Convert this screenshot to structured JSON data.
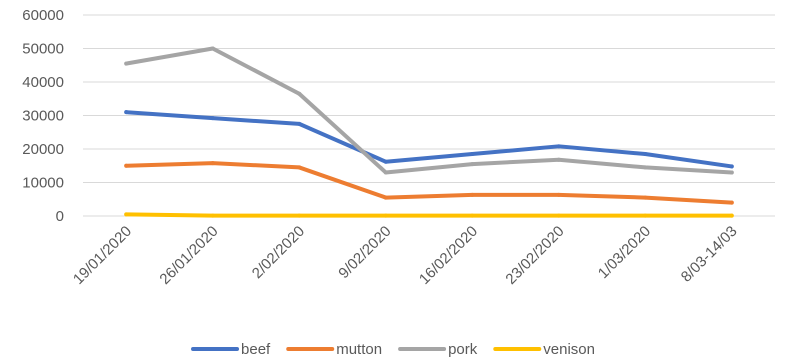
{
  "chart_data": {
    "type": "line",
    "categories": [
      "19/01/2020",
      "26/01/2020",
      "2/02/2020",
      "9/02/2020",
      "16/02/2020",
      "23/02/2020",
      "1/03/2020",
      "8/03-14/03"
    ],
    "ylim": [
      0,
      60000
    ],
    "yticks": [
      0,
      10000,
      20000,
      30000,
      40000,
      50000,
      60000
    ],
    "grid": true,
    "legend_position": "bottom",
    "series": [
      {
        "name": "beef",
        "color": "#4472C4",
        "values": [
          31000,
          29200,
          27500,
          16200,
          18500,
          20800,
          18500,
          14800
        ]
      },
      {
        "name": "mutton",
        "color": "#ED7D31",
        "values": [
          15000,
          15800,
          14500,
          5500,
          6300,
          6300,
          5500,
          4000
        ]
      },
      {
        "name": "pork",
        "color": "#A5A5A5",
        "values": [
          45500,
          50000,
          36500,
          13000,
          15500,
          16800,
          14500,
          13000
        ]
      },
      {
        "name": "venison",
        "color": "#FFC000",
        "values": [
          500,
          100,
          100,
          100,
          100,
          100,
          100,
          100
        ]
      }
    ]
  }
}
